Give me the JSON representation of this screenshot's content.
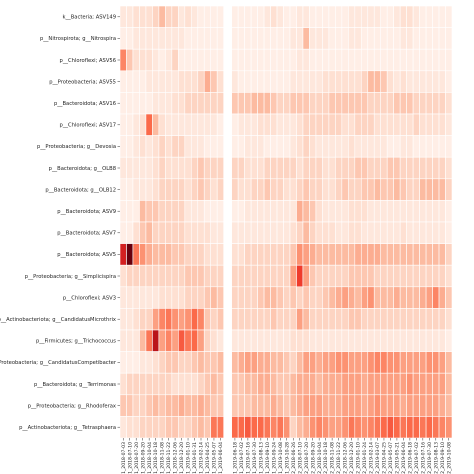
{
  "chart_data": {
    "type": "heatmap",
    "title": "",
    "xlabel": "",
    "ylabel": "",
    "color_scale": {
      "low": "#fff5f0",
      "high": "#67000d"
    },
    "gap_after_column": 15,
    "rows": [
      "k__Bacteria; ASV149",
      "p__Nitrospirota; g__Nitrospira",
      "p__Chloroflexi; ASV56",
      "p__Proteobacteria; ASV55",
      "p__Bacteroidota; ASV16",
      "p__Chloroflexi; ASV17",
      "p__Proteobacteria; g__Devosia",
      "p__Bacteroidota; g__OLB8",
      "p__Bacteroidota; g__OLB12",
      "p__Bacteroidota; ASV9",
      "p__Bacteroidota; ASV7",
      "p__Bacteroidota; ASV5",
      "p__Proteobacteria; g__Simplicispira",
      "p__Chloroflexi; ASV3",
      "p__Actinobacteriota; g__CandidatusMicrothrix",
      "p__Firmicutes; g__Trichococcus",
      "p__Proteobacteria; g__CandidatusCompetibacter",
      "p__Bacteroidota; g__Terrimonas",
      "p__Proteobacteria; g__Rhodoferax",
      "p__Actinobacteriota; g__Tetrasphaera"
    ],
    "columns": [
      "R1_2018-07-03",
      "R1_2018-07-10",
      "R1_2018-07-20",
      "R1_2018-09-20",
      "R1_2018-10-04",
      "R1_2018-10-18",
      "R1_2018-11-08",
      "R1_2018-11-22",
      "R1_2018-12-06",
      "R1_2018-12-20",
      "R1_2019-01-10",
      "R1_2019-01-31",
      "R1_2019-02-14",
      "R1_2019-04-25",
      "R1_2019-05-07",
      "R1_2019-06-04",
      "R1_2019-06-18",
      "R1_2019-07-02",
      "R1_2019-07-16",
      "R1_2019-07-30",
      "R1_2019-08-13",
      "R1_2019-09-10",
      "R1_2019-09-24",
      "R1_2019-10-08",
      "R1_2019-10-28",
      "R2_2018-06-26",
      "R2_2018-07-10",
      "R2_2018-07-20",
      "R2_2018-09-20",
      "R2_2018-10-04",
      "R2_2018-10-18",
      "R2_2018-11-08",
      "R2_2018-11-22",
      "R2_2018-12-06",
      "R2_2018-12-20",
      "R2_2019-01-10",
      "R2_2019-01-24",
      "R2_2019-02-14",
      "R2_2019-03-07",
      "R2_2019-04-25",
      "R2_2019-05-07",
      "R2_2019-05-21",
      "R2_2019-06-04",
      "R2_2019-06-18",
      "R2_2019-07-02",
      "R2_2019-07-16",
      "R2_2019-07-30",
      "R2_2019-08-13",
      "R2_2019-09-10",
      "R2_2019-10-08"
    ],
    "values": [
      [
        0.1,
        0.1,
        0.15,
        0.15,
        0.15,
        0.2,
        0.3,
        0.2,
        0.2,
        0.1,
        0.15,
        0.1,
        0.05,
        0.05,
        0.05,
        0.05,
        0.05,
        0.05,
        0.05,
        0.05,
        0.05,
        0.1,
        0.15,
        0.1,
        0.05,
        0.05,
        0.1,
        0.1,
        0.05,
        0.05,
        0.05,
        0.05,
        0.05,
        0.05,
        0.1,
        0.1,
        0.1,
        0.1,
        0.1,
        0.05,
        0.05,
        0.1,
        0.15,
        0.15,
        0.1,
        0.05,
        0.05,
        0.05,
        0.05,
        0.05
      ],
      [
        0.05,
        0.05,
        0.1,
        0.1,
        0.1,
        0.1,
        0.1,
        0.1,
        0.1,
        0.1,
        0.05,
        0.05,
        0.05,
        0.05,
        0.05,
        0.05,
        0.05,
        0.05,
        0.05,
        0.05,
        0.05,
        0.05,
        0.05,
        0.05,
        0.05,
        0.1,
        0.1,
        0.3,
        0.1,
        0.1,
        0.1,
        0.05,
        0.05,
        0.05,
        0.1,
        0.1,
        0.05,
        0.05,
        0.05,
        0.05,
        0.05,
        0.05,
        0.1,
        0.1,
        0.05,
        0.05,
        0.05,
        0.05,
        0.05,
        0.05
      ],
      [
        0.5,
        0.25,
        0.15,
        0.15,
        0.15,
        0.1,
        0.05,
        0.1,
        0.2,
        0.05,
        0.05,
        0.05,
        0.05,
        0.05,
        0.05,
        0.05,
        0.05,
        0.05,
        0.05,
        0.05,
        0.05,
        0.05,
        0.05,
        0.05,
        0.05,
        0.05,
        0.1,
        0.1,
        0.05,
        0.05,
        0.05,
        0.05,
        0.05,
        0.05,
        0.05,
        0.05,
        0.05,
        0.05,
        0.05,
        0.05,
        0.05,
        0.05,
        0.05,
        0.05,
        0.05,
        0.05,
        0.05,
        0.05,
        0.05,
        0.05
      ],
      [
        0.05,
        0.05,
        0.05,
        0.05,
        0.1,
        0.1,
        0.1,
        0.1,
        0.1,
        0.15,
        0.15,
        0.15,
        0.2,
        0.35,
        0.25,
        0.15,
        0.1,
        0.05,
        0.05,
        0.05,
        0.05,
        0.05,
        0.05,
        0.05,
        0.05,
        0.1,
        0.1,
        0.1,
        0.1,
        0.1,
        0.15,
        0.15,
        0.15,
        0.15,
        0.15,
        0.15,
        0.2,
        0.3,
        0.3,
        0.25,
        0.15,
        0.1,
        0.15,
        0.1,
        0.1,
        0.1,
        0.1,
        0.1,
        0.1,
        0.05
      ],
      [
        0.05,
        0.05,
        0.05,
        0.05,
        0.05,
        0.1,
        0.1,
        0.1,
        0.15,
        0.15,
        0.2,
        0.2,
        0.2,
        0.2,
        0.2,
        0.2,
        0.25,
        0.25,
        0.25,
        0.3,
        0.3,
        0.3,
        0.25,
        0.2,
        0.2,
        0.25,
        0.25,
        0.25,
        0.2,
        0.2,
        0.2,
        0.25,
        0.25,
        0.25,
        0.25,
        0.25,
        0.25,
        0.2,
        0.2,
        0.2,
        0.2,
        0.25,
        0.25,
        0.25,
        0.2,
        0.2,
        0.2,
        0.2,
        0.2,
        0.15
      ],
      [
        0.05,
        0.05,
        0.1,
        0.15,
        0.6,
        0.3,
        0.15,
        0.1,
        0.1,
        0.1,
        0.1,
        0.1,
        0.1,
        0.1,
        0.1,
        0.05,
        0.05,
        0.1,
        0.1,
        0.1,
        0.15,
        0.15,
        0.15,
        0.1,
        0.1,
        0.1,
        0.15,
        0.2,
        0.2,
        0.2,
        0.2,
        0.2,
        0.2,
        0.15,
        0.15,
        0.2,
        0.2,
        0.2,
        0.15,
        0.15,
        0.15,
        0.15,
        0.15,
        0.15,
        0.2,
        0.15,
        0.15,
        0.15,
        0.15,
        0.1
      ],
      [
        0.05,
        0.05,
        0.1,
        0.15,
        0.1,
        0.15,
        0.2,
        0.15,
        0.2,
        0.2,
        0.1,
        0.1,
        0.1,
        0.05,
        0.05,
        0.05,
        0.05,
        0.05,
        0.1,
        0.1,
        0.1,
        0.05,
        0.05,
        0.05,
        0.05,
        0.1,
        0.15,
        0.2,
        0.15,
        0.1,
        0.1,
        0.1,
        0.1,
        0.1,
        0.15,
        0.1,
        0.1,
        0.1,
        0.1,
        0.1,
        0.05,
        0.05,
        0.1,
        0.1,
        0.05,
        0.05,
        0.05,
        0.05,
        0.05,
        0.05
      ],
      [
        0.1,
        0.1,
        0.1,
        0.1,
        0.1,
        0.15,
        0.2,
        0.15,
        0.15,
        0.15,
        0.15,
        0.2,
        0.25,
        0.2,
        0.2,
        0.2,
        0.2,
        0.2,
        0.15,
        0.15,
        0.15,
        0.2,
        0.2,
        0.2,
        0.2,
        0.2,
        0.15,
        0.2,
        0.2,
        0.2,
        0.15,
        0.15,
        0.2,
        0.2,
        0.2,
        0.25,
        0.25,
        0.2,
        0.2,
        0.2,
        0.25,
        0.25,
        0.2,
        0.2,
        0.2,
        0.2,
        0.2,
        0.2,
        0.2,
        0.15
      ],
      [
        0.05,
        0.05,
        0.1,
        0.1,
        0.1,
        0.15,
        0.2,
        0.2,
        0.2,
        0.2,
        0.15,
        0.2,
        0.25,
        0.2,
        0.15,
        0.2,
        0.2,
        0.15,
        0.15,
        0.2,
        0.2,
        0.25,
        0.2,
        0.2,
        0.15,
        0.15,
        0.2,
        0.25,
        0.2,
        0.2,
        0.15,
        0.15,
        0.2,
        0.25,
        0.2,
        0.2,
        0.25,
        0.25,
        0.3,
        0.25,
        0.25,
        0.3,
        0.25,
        0.2,
        0.2,
        0.3,
        0.3,
        0.3,
        0.3,
        0.2
      ],
      [
        0.05,
        0.05,
        0.05,
        0.3,
        0.25,
        0.25,
        0.2,
        0.2,
        0.2,
        0.2,
        0.1,
        0.1,
        0.1,
        0.05,
        0.05,
        0.05,
        0.05,
        0.05,
        0.1,
        0.1,
        0.1,
        0.1,
        0.1,
        0.1,
        0.1,
        0.1,
        0.35,
        0.3,
        0.25,
        0.15,
        0.1,
        0.1,
        0.1,
        0.1,
        0.15,
        0.15,
        0.15,
        0.1,
        0.1,
        0.1,
        0.1,
        0.1,
        0.1,
        0.1,
        0.1,
        0.1,
        0.1,
        0.1,
        0.1,
        0.05
      ],
      [
        0.05,
        0.05,
        0.15,
        0.25,
        0.3,
        0.2,
        0.2,
        0.2,
        0.2,
        0.2,
        0.15,
        0.15,
        0.15,
        0.15,
        0.1,
        0.1,
        0.1,
        0.1,
        0.1,
        0.1,
        0.1,
        0.1,
        0.1,
        0.1,
        0.1,
        0.15,
        0.2,
        0.3,
        0.2,
        0.15,
        0.15,
        0.15,
        0.1,
        0.1,
        0.15,
        0.15,
        0.1,
        0.1,
        0.1,
        0.1,
        0.1,
        0.1,
        0.15,
        0.1,
        0.1,
        0.1,
        0.1,
        0.1,
        0.1,
        0.05
      ],
      [
        0.85,
        1.0,
        0.55,
        0.45,
        0.35,
        0.3,
        0.3,
        0.3,
        0.25,
        0.25,
        0.2,
        0.2,
        0.2,
        0.15,
        0.15,
        0.15,
        0.15,
        0.15,
        0.2,
        0.2,
        0.2,
        0.2,
        0.2,
        0.2,
        0.2,
        0.25,
        0.45,
        0.4,
        0.35,
        0.3,
        0.3,
        0.3,
        0.3,
        0.3,
        0.3,
        0.35,
        0.35,
        0.35,
        0.35,
        0.3,
        0.3,
        0.3,
        0.3,
        0.3,
        0.3,
        0.3,
        0.3,
        0.3,
        0.3,
        0.2
      ],
      [
        0.15,
        0.2,
        0.2,
        0.2,
        0.2,
        0.2,
        0.2,
        0.2,
        0.2,
        0.2,
        0.25,
        0.25,
        0.25,
        0.2,
        0.2,
        0.2,
        0.2,
        0.2,
        0.2,
        0.2,
        0.2,
        0.2,
        0.2,
        0.2,
        0.2,
        0.4,
        0.75,
        0.4,
        0.25,
        0.2,
        0.2,
        0.2,
        0.2,
        0.2,
        0.25,
        0.25,
        0.25,
        0.25,
        0.2,
        0.2,
        0.2,
        0.2,
        0.2,
        0.2,
        0.2,
        0.2,
        0.2,
        0.2,
        0.2,
        0.15
      ],
      [
        0.1,
        0.1,
        0.1,
        0.1,
        0.1,
        0.1,
        0.15,
        0.15,
        0.15,
        0.15,
        0.2,
        0.2,
        0.2,
        0.25,
        0.3,
        0.25,
        0.2,
        0.2,
        0.2,
        0.2,
        0.25,
        0.3,
        0.3,
        0.25,
        0.2,
        0.25,
        0.2,
        0.25,
        0.2,
        0.2,
        0.25,
        0.3,
        0.35,
        0.4,
        0.35,
        0.3,
        0.4,
        0.45,
        0.3,
        0.3,
        0.3,
        0.35,
        0.3,
        0.3,
        0.3,
        0.35,
        0.4,
        0.5,
        0.35,
        0.25
      ],
      [
        0.1,
        0.1,
        0.15,
        0.2,
        0.2,
        0.4,
        0.5,
        0.55,
        0.45,
        0.4,
        0.45,
        0.6,
        0.5,
        0.25,
        0.2,
        0.25,
        0.2,
        0.2,
        0.2,
        0.2,
        0.2,
        0.2,
        0.25,
        0.2,
        0.2,
        0.2,
        0.4,
        0.3,
        0.2,
        0.2,
        0.2,
        0.2,
        0.2,
        0.2,
        0.25,
        0.25,
        0.2,
        0.2,
        0.2,
        0.2,
        0.2,
        0.2,
        0.2,
        0.2,
        0.2,
        0.2,
        0.2,
        0.2,
        0.2,
        0.15
      ],
      [
        0.1,
        0.1,
        0.1,
        0.3,
        0.55,
        0.9,
        0.4,
        0.5,
        0.4,
        0.65,
        0.55,
        0.6,
        0.4,
        0.2,
        0.15,
        0.1,
        0.1,
        0.1,
        0.1,
        0.1,
        0.1,
        0.1,
        0.1,
        0.1,
        0.1,
        0.15,
        0.15,
        0.15,
        0.1,
        0.1,
        0.1,
        0.1,
        0.1,
        0.1,
        0.1,
        0.1,
        0.1,
        0.1,
        0.1,
        0.1,
        0.1,
        0.1,
        0.1,
        0.1,
        0.1,
        0.1,
        0.1,
        0.1,
        0.1,
        0.05
      ],
      [
        0.05,
        0.05,
        0.05,
        0.1,
        0.1,
        0.15,
        0.2,
        0.25,
        0.25,
        0.2,
        0.2,
        0.25,
        0.3,
        0.25,
        0.25,
        0.3,
        0.3,
        0.35,
        0.4,
        0.4,
        0.35,
        0.35,
        0.3,
        0.3,
        0.25,
        0.2,
        0.3,
        0.4,
        0.4,
        0.35,
        0.4,
        0.4,
        0.45,
        0.45,
        0.4,
        0.4,
        0.4,
        0.45,
        0.5,
        0.5,
        0.45,
        0.45,
        0.4,
        0.4,
        0.4,
        0.4,
        0.45,
        0.45,
        0.4,
        0.3
      ],
      [
        0.15,
        0.2,
        0.2,
        0.2,
        0.2,
        0.2,
        0.2,
        0.2,
        0.15,
        0.15,
        0.15,
        0.15,
        0.2,
        0.25,
        0.3,
        0.25,
        0.25,
        0.25,
        0.3,
        0.3,
        0.35,
        0.35,
        0.3,
        0.25,
        0.25,
        0.3,
        0.35,
        0.35,
        0.35,
        0.3,
        0.35,
        0.35,
        0.35,
        0.4,
        0.4,
        0.4,
        0.35,
        0.4,
        0.4,
        0.4,
        0.4,
        0.4,
        0.4,
        0.45,
        0.4,
        0.4,
        0.4,
        0.4,
        0.4,
        0.3
      ],
      [
        0.25,
        0.25,
        0.2,
        0.2,
        0.25,
        0.3,
        0.25,
        0.3,
        0.3,
        0.35,
        0.3,
        0.3,
        0.35,
        0.3,
        0.25,
        0.25,
        0.25,
        0.25,
        0.25,
        0.3,
        0.3,
        0.3,
        0.35,
        0.3,
        0.25,
        0.3,
        0.35,
        0.4,
        0.4,
        0.4,
        0.35,
        0.35,
        0.35,
        0.4,
        0.4,
        0.4,
        0.35,
        0.4,
        0.45,
        0.4,
        0.4,
        0.4,
        0.35,
        0.4,
        0.4,
        0.4,
        0.4,
        0.4,
        0.35,
        0.3
      ],
      [
        0.1,
        0.15,
        0.15,
        0.2,
        0.2,
        0.2,
        0.2,
        0.25,
        0.25,
        0.2,
        0.2,
        0.25,
        0.3,
        0.25,
        0.55,
        0.55,
        0.6,
        0.6,
        0.65,
        0.6,
        0.6,
        0.55,
        0.5,
        0.55,
        0.45,
        0.2,
        0.3,
        0.35,
        0.45,
        0.5,
        0.45,
        0.4,
        0.4,
        0.45,
        0.55,
        0.5,
        0.45,
        0.5,
        0.55,
        0.6,
        0.65,
        0.6,
        0.55,
        0.6,
        0.6,
        0.55,
        0.6,
        0.55,
        0.5,
        0.45
      ]
    ]
  }
}
